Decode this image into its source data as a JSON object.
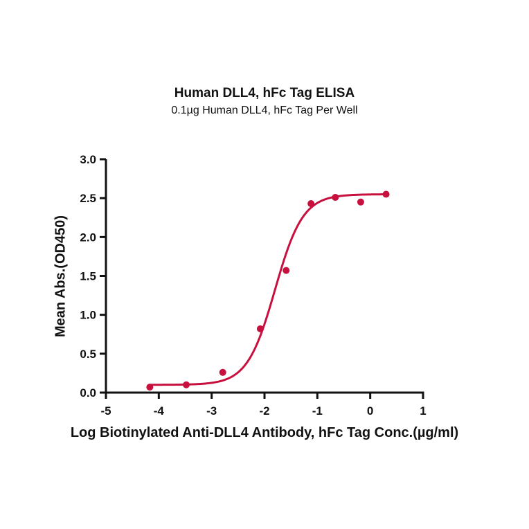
{
  "title": "Human DLL4, hFc Tag ELISA",
  "subtitle": "0.1µg Human DLL4, hFc Tag Per Well",
  "xlabel": "Log Biotinylated Anti-DLL4 Antibody, hFc Tag Conc.(µg/ml)",
  "ylabel": "Mean Abs.(OD450)",
  "colors": {
    "series": "#c8103e",
    "axis": "#111111"
  },
  "chart_data": {
    "type": "scatter",
    "title": "Human DLL4, hFc Tag ELISA",
    "subtitle": "0.1µg Human DLL4, hFc Tag Per Well",
    "xlabel": "Log Biotinylated Anti-DLL4 Antibody, hFc Tag Conc.(µg/ml)",
    "ylabel": "Mean Abs.(OD450)",
    "xlim": [
      -5,
      1
    ],
    "ylim": [
      0,
      3.0
    ],
    "xticks": [
      "-5",
      "-4",
      "-3",
      "-2",
      "-1",
      "0",
      "1"
    ],
    "yticks": [
      "0.0",
      "0.5",
      "1.0",
      "1.5",
      "2.0",
      "2.5",
      "3.0"
    ],
    "grid": false,
    "legend": null,
    "series": [
      {
        "name": "Human DLL4, hFc Tag",
        "x": [
          -4.17,
          -3.48,
          -2.79,
          -2.08,
          -1.59,
          -1.12,
          -0.66,
          -0.18,
          0.3
        ],
        "y": [
          0.07,
          0.1,
          0.26,
          0.82,
          1.57,
          2.43,
          2.51,
          2.45,
          2.55
        ],
        "fit": {
          "model": "4PL",
          "bottom": 0.1,
          "top": 2.55,
          "logEC50": -1.8,
          "hill": 1.65
        }
      }
    ]
  }
}
